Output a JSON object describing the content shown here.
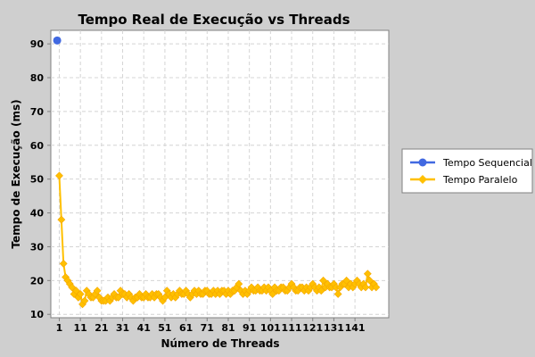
{
  "chart_data": {
    "type": "line",
    "title": "Tempo Real de Execução vs Threads",
    "xlabel": "Número de Threads",
    "ylabel": "Tempo de Execução (ms)",
    "xlim": [
      -3,
      157
    ],
    "ylim": [
      9,
      94
    ],
    "xticks": [
      "1",
      "11",
      "21",
      "31",
      "41",
      "51",
      "61",
      "71",
      "81",
      "91",
      "101",
      "111",
      "121",
      "131",
      "141"
    ],
    "yticks": [
      10,
      20,
      30,
      40,
      50,
      60,
      70,
      80,
      90
    ],
    "grid": true,
    "legend_position": "right",
    "colors": {
      "background": "#cfcfcf",
      "plot_bg": "#ffffff",
      "grid": "#d4d4d4",
      "sequencial": "#4169e1",
      "paralelo": "#ffc000",
      "paralelo_stroke": "#f5a800"
    },
    "series": [
      {
        "name": "Tempo Sequencial",
        "marker": "circle",
        "points": [
          [
            0,
            91
          ]
        ]
      },
      {
        "name": "Tempo Paralelo",
        "marker": "diamond",
        "x_start": 1,
        "values": [
          51,
          38,
          25,
          21,
          20,
          19,
          18,
          16,
          17,
          15,
          16,
          13,
          14,
          17,
          16,
          15,
          15,
          16,
          17,
          15,
          14,
          14,
          14,
          15,
          14,
          15,
          16,
          15,
          15,
          17,
          16,
          16,
          15,
          16,
          15,
          14,
          15,
          15,
          16,
          15,
          15,
          16,
          15,
          15,
          16,
          15,
          16,
          16,
          15,
          14,
          15,
          17,
          16,
          15,
          16,
          15,
          16,
          17,
          16,
          16,
          17,
          16,
          15,
          16,
          17,
          16,
          17,
          16,
          16,
          17,
          17,
          16,
          16,
          17,
          16,
          17,
          16,
          17,
          17,
          16,
          17,
          16,
          17,
          17,
          18,
          19,
          17,
          16,
          17,
          16,
          17,
          18,
          17,
          17,
          18,
          17,
          17,
          18,
          17,
          18,
          17,
          16,
          18,
          17,
          17,
          18,
          18,
          17,
          17,
          18,
          19,
          18,
          17,
          17,
          18,
          18,
          17,
          18,
          17,
          18,
          19,
          18,
          17,
          18,
          17,
          20,
          18,
          19,
          18,
          18,
          19,
          18,
          16,
          18,
          19,
          19,
          20,
          18,
          19,
          18,
          19,
          20,
          19,
          18,
          19,
          18,
          22,
          20,
          18,
          19,
          18
        ]
      }
    ]
  }
}
